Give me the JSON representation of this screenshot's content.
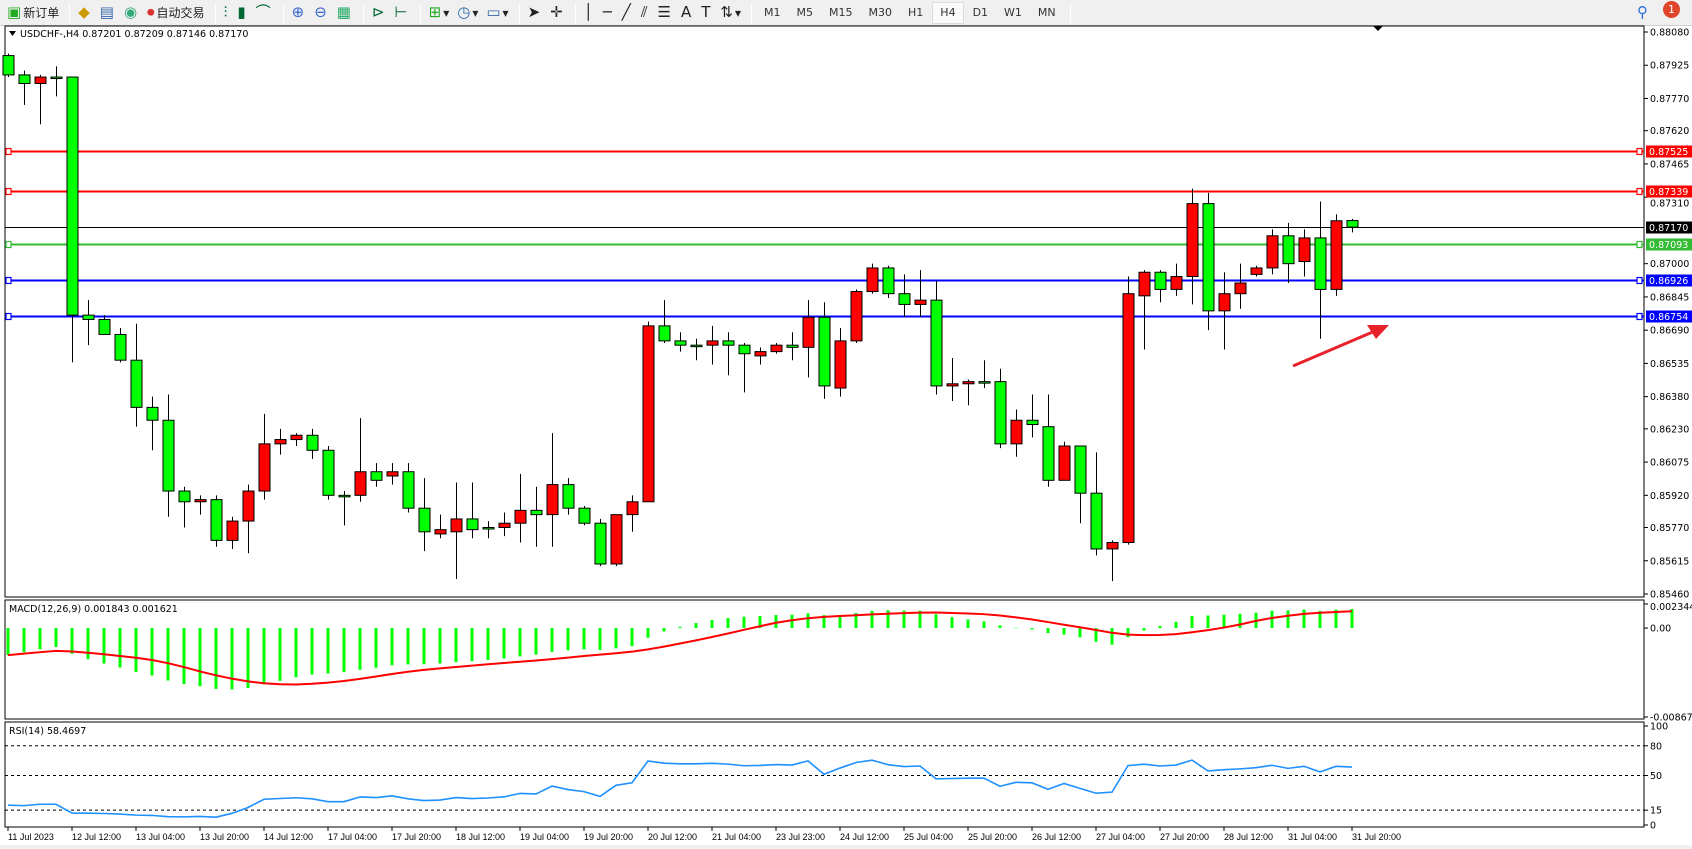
{
  "toolbar": {
    "new_order": "新订单",
    "auto_trading": "自动交易",
    "timeframes": [
      "M1",
      "M5",
      "M15",
      "M30",
      "H1",
      "H4",
      "D1",
      "W1",
      "MN"
    ],
    "active_timeframe": "H4",
    "notification_count": "1",
    "icons": [
      "new-order-icon",
      "gold-icon",
      "market-watch-icon",
      "signals-icon",
      "auto-trading-icon",
      "bar-chart-icon",
      "candlestick-icon",
      "line-chart-icon",
      "zoom-in-icon",
      "zoom-out-icon",
      "tile-windows-icon",
      "autoscroll-icon",
      "chart-shift-icon",
      "indicators-icon",
      "periods-icon",
      "templates-icon",
      "cursor-icon",
      "crosshair-icon",
      "vertical-line-icon",
      "horizontal-line-icon",
      "trendline-icon",
      "equidistant-channel-icon",
      "fibonacci-icon",
      "text-icon",
      "text-label-icon",
      "arrows-icon"
    ]
  },
  "chart": {
    "header": "USDCHF-,H4  0.87201 0.87209 0.87146 0.87170",
    "bull_color": "#ff0000",
    "bear_color": "#00ff00",
    "price_axis": [
      "0.88080",
      "0.87925",
      "0.87770",
      "0.87620",
      "0.87465",
      "0.87310",
      "0.87000",
      "0.86845",
      "0.86690",
      "0.86535",
      "0.86380",
      "0.86230",
      "0.86075",
      "0.85920",
      "0.85770",
      "0.85615",
      "0.85460"
    ],
    "hlines": [
      {
        "price": 0.87525,
        "label": "0.87525",
        "color": "#ff0000"
      },
      {
        "price": 0.87339,
        "label": "0.87339",
        "color": "#ff0000"
      },
      {
        "price": 0.8717,
        "label": "0.87170",
        "color": "#000000"
      },
      {
        "price": 0.87093,
        "label": "0.87093",
        "color": "#33bb33"
      },
      {
        "price": 0.86926,
        "label": "0.86926",
        "color": "#0000ff"
      },
      {
        "price": 0.86754,
        "label": "0.86754",
        "color": "#0000ff"
      }
    ],
    "arrow_color": "#e8222a",
    "candles_ohlc": [
      [
        0.8797,
        0.8798,
        0.8787,
        0.8788
      ],
      [
        0.8788,
        0.879,
        0.8774,
        0.8784
      ],
      [
        0.8784,
        0.8788,
        0.8765,
        0.8787
      ],
      [
        0.8787,
        0.8792,
        0.8778,
        0.8787
      ],
      [
        0.8787,
        0.8787,
        0.8654,
        0.8676
      ],
      [
        0.8676,
        0.8683,
        0.8662,
        0.8674
      ],
      [
        0.8674,
        0.8676,
        0.8667,
        0.8667
      ],
      [
        0.8667,
        0.867,
        0.8654,
        0.8655
      ],
      [
        0.8655,
        0.8672,
        0.8624,
        0.8633
      ],
      [
        0.8633,
        0.8638,
        0.8613,
        0.8627
      ],
      [
        0.8627,
        0.8639,
        0.8582,
        0.8594
      ],
      [
        0.8594,
        0.8596,
        0.8577,
        0.8589
      ],
      [
        0.8589,
        0.8592,
        0.8583,
        0.859
      ],
      [
        0.859,
        0.8592,
        0.8568,
        0.8571
      ],
      [
        0.8571,
        0.8582,
        0.8567,
        0.858
      ],
      [
        0.858,
        0.8597,
        0.8565,
        0.8594
      ],
      [
        0.8594,
        0.863,
        0.859,
        0.8616
      ],
      [
        0.8616,
        0.8623,
        0.8611,
        0.8618
      ],
      [
        0.8618,
        0.8621,
        0.8615,
        0.862
      ],
      [
        0.862,
        0.8623,
        0.8609,
        0.8613
      ],
      [
        0.8613,
        0.8615,
        0.859,
        0.8592
      ],
      [
        0.8592,
        0.8594,
        0.8578,
        0.8592
      ],
      [
        0.8592,
        0.8628,
        0.8589,
        0.8603
      ],
      [
        0.8603,
        0.8607,
        0.8596,
        0.8599
      ],
      [
        0.8601,
        0.8607,
        0.8597,
        0.8603
      ],
      [
        0.8603,
        0.8607,
        0.8584,
        0.8586
      ],
      [
        0.8586,
        0.86,
        0.8566,
        0.8575
      ],
      [
        0.8574,
        0.8583,
        0.8572,
        0.8576
      ],
      [
        0.8575,
        0.8598,
        0.8553,
        0.8581
      ],
      [
        0.8581,
        0.8598,
        0.8572,
        0.8576
      ],
      [
        0.8577,
        0.858,
        0.8572,
        0.8577
      ],
      [
        0.8577,
        0.8584,
        0.8573,
        0.8579
      ],
      [
        0.8579,
        0.8602,
        0.857,
        0.8585
      ],
      [
        0.8585,
        0.8596,
        0.8568,
        0.8583
      ],
      [
        0.8583,
        0.8621,
        0.8568,
        0.8597
      ],
      [
        0.8597,
        0.86,
        0.8583,
        0.8586
      ],
      [
        0.8586,
        0.8587,
        0.8578,
        0.8579
      ],
      [
        0.8579,
        0.8581,
        0.8559,
        0.856
      ],
      [
        0.856,
        0.8582,
        0.8559,
        0.8583
      ],
      [
        0.8583,
        0.8592,
        0.8575,
        0.8589
      ],
      [
        0.8589,
        0.8673,
        0.8589,
        0.8671
      ],
      [
        0.8671,
        0.8683,
        0.8663,
        0.8664
      ],
      [
        0.8664,
        0.8668,
        0.8659,
        0.8662
      ],
      [
        0.8662,
        0.8665,
        0.8655,
        0.8662
      ],
      [
        0.8662,
        0.8671,
        0.8653,
        0.8664
      ],
      [
        0.8664,
        0.8668,
        0.8648,
        0.8662
      ],
      [
        0.8662,
        0.8663,
        0.864,
        0.8658
      ],
      [
        0.8657,
        0.8661,
        0.8653,
        0.8659
      ],
      [
        0.8659,
        0.8663,
        0.8658,
        0.8662
      ],
      [
        0.8662,
        0.8668,
        0.8655,
        0.8661
      ],
      [
        0.8661,
        0.8683,
        0.8647,
        0.8675
      ],
      [
        0.8675,
        0.8682,
        0.8637,
        0.8643
      ],
      [
        0.8642,
        0.867,
        0.8638,
        0.8664
      ],
      [
        0.8664,
        0.8688,
        0.8663,
        0.8687
      ],
      [
        0.8687,
        0.87,
        0.8686,
        0.8698
      ],
      [
        0.8698,
        0.8699,
        0.8684,
        0.8686
      ],
      [
        0.8686,
        0.8695,
        0.8675,
        0.8681
      ],
      [
        0.8681,
        0.8697,
        0.8675,
        0.8683
      ],
      [
        0.8683,
        0.8692,
        0.8639,
        0.8643
      ],
      [
        0.8643,
        0.8656,
        0.8636,
        0.8644
      ],
      [
        0.8644,
        0.8646,
        0.8634,
        0.8645
      ],
      [
        0.8645,
        0.8655,
        0.8642,
        0.8645
      ],
      [
        0.8645,
        0.8651,
        0.8614,
        0.8616
      ],
      [
        0.8616,
        0.8632,
        0.861,
        0.8627
      ],
      [
        0.8627,
        0.8639,
        0.8619,
        0.8625
      ],
      [
        0.8624,
        0.8639,
        0.8596,
        0.8599
      ],
      [
        0.8599,
        0.8617,
        0.8599,
        0.8615
      ],
      [
        0.8615,
        0.8615,
        0.8579,
        0.8593
      ],
      [
        0.8593,
        0.8612,
        0.8564,
        0.8567
      ],
      [
        0.8567,
        0.8571,
        0.8552,
        0.857
      ],
      [
        0.857,
        0.8694,
        0.8569,
        0.8686
      ],
      [
        0.8685,
        0.8697,
        0.866,
        0.8696
      ],
      [
        0.8696,
        0.8697,
        0.8682,
        0.8688
      ],
      [
        0.8688,
        0.87,
        0.8685,
        0.8694
      ],
      [
        0.8694,
        0.8735,
        0.8681,
        0.8728
      ],
      [
        0.8728,
        0.8733,
        0.8669,
        0.8678
      ],
      [
        0.8678,
        0.8696,
        0.866,
        0.8686
      ],
      [
        0.8686,
        0.87,
        0.8679,
        0.8691
      ],
      [
        0.8695,
        0.8699,
        0.8694,
        0.8698
      ],
      [
        0.8698,
        0.8716,
        0.8695,
        0.8713
      ],
      [
        0.8713,
        0.8719,
        0.8691,
        0.87
      ],
      [
        0.8701,
        0.8716,
        0.8694,
        0.8712
      ],
      [
        0.8712,
        0.8729,
        0.8665,
        0.8688
      ],
      [
        0.8688,
        0.8723,
        0.8685,
        0.872
      ],
      [
        0.87201,
        0.87209,
        0.87146,
        0.8717
      ]
    ],
    "time_axis": [
      "11 Jul 2023",
      "12 Jul 12:00",
      "13 Jul 04:00",
      "13 Jul 20:00",
      "14 Jul 12:00",
      "17 Jul 04:00",
      "17 Jul 20:00",
      "18 Jul 12:00",
      "19 Jul 04:00",
      "19 Jul 20:00",
      "20 Jul 12:00",
      "21 Jul 04:00",
      "23 Jul 23:00",
      "24 Jul 12:00",
      "25 Jul 04:00",
      "25 Jul 20:00",
      "26 Jul 12:00",
      "27 Jul 04:00",
      "27 Jul 20:00",
      "28 Jul 12:00",
      "31 Jul 04:00",
      "31 Jul 20:00"
    ]
  },
  "macd": {
    "header": "MACD(12,26,9) 0.001843 0.001621",
    "axis": [
      "0.002344",
      "0.00",
      "-0.00867"
    ],
    "histogram_color": "#00ff00",
    "signal_color": "#ff0000"
  },
  "rsi": {
    "header": "RSI(14) 58.4697",
    "axis": [
      "100",
      "80",
      "50",
      "15",
      "0"
    ],
    "line_color": "#1e90ff"
  }
}
